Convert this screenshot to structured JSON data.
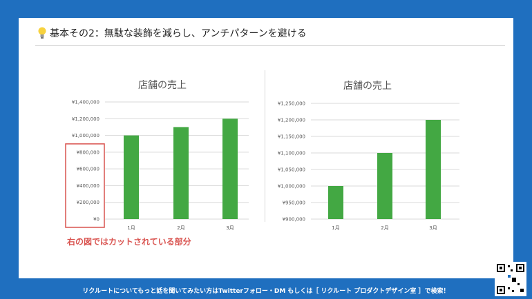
{
  "slide": {
    "title": "基本その2：無駄な装飾を減らし、アンチパターンを避ける",
    "annotation": "右の図ではカットされている部分",
    "footer": "リクルートについてもっと話を聞いてみたい方はTwitterフォロー・DM もしくは［ リクルート プロダクトデザイン室 ］で検索！"
  },
  "colors": {
    "bar": "#43a843",
    "grid": "#d9d9d9",
    "highlight": "#d9534f",
    "background": "#1f6fbf"
  },
  "chart_data": [
    {
      "type": "bar",
      "title": "店舗の売上",
      "categories": [
        "1月",
        "2月",
        "3月"
      ],
      "values": [
        1000000,
        1100000,
        1200000
      ],
      "ylim": [
        0,
        1400000
      ],
      "yticks": [
        0,
        200000,
        400000,
        600000,
        800000,
        1000000,
        1200000,
        1400000
      ],
      "yticklabels": [
        "¥0",
        "¥200,000",
        "¥400,000",
        "¥600,000",
        "¥800,000",
        "¥1,000,000",
        "¥1,200,000",
        "¥1,400,000"
      ],
      "grid": true
    },
    {
      "type": "bar",
      "title": "店舗の売上",
      "categories": [
        "1月",
        "2月",
        "3月"
      ],
      "values": [
        1000000,
        1100000,
        1200000
      ],
      "ylim": [
        900000,
        1250000
      ],
      "yticks": [
        900000,
        950000,
        1000000,
        1050000,
        1100000,
        1150000,
        1200000,
        1250000
      ],
      "yticklabels": [
        "¥900,000",
        "¥950,000",
        "¥1,000,000",
        "¥1,050,000",
        "¥1,100,000",
        "¥1,150,000",
        "¥1,200,000",
        "¥1,250,000"
      ],
      "grid": true
    }
  ]
}
